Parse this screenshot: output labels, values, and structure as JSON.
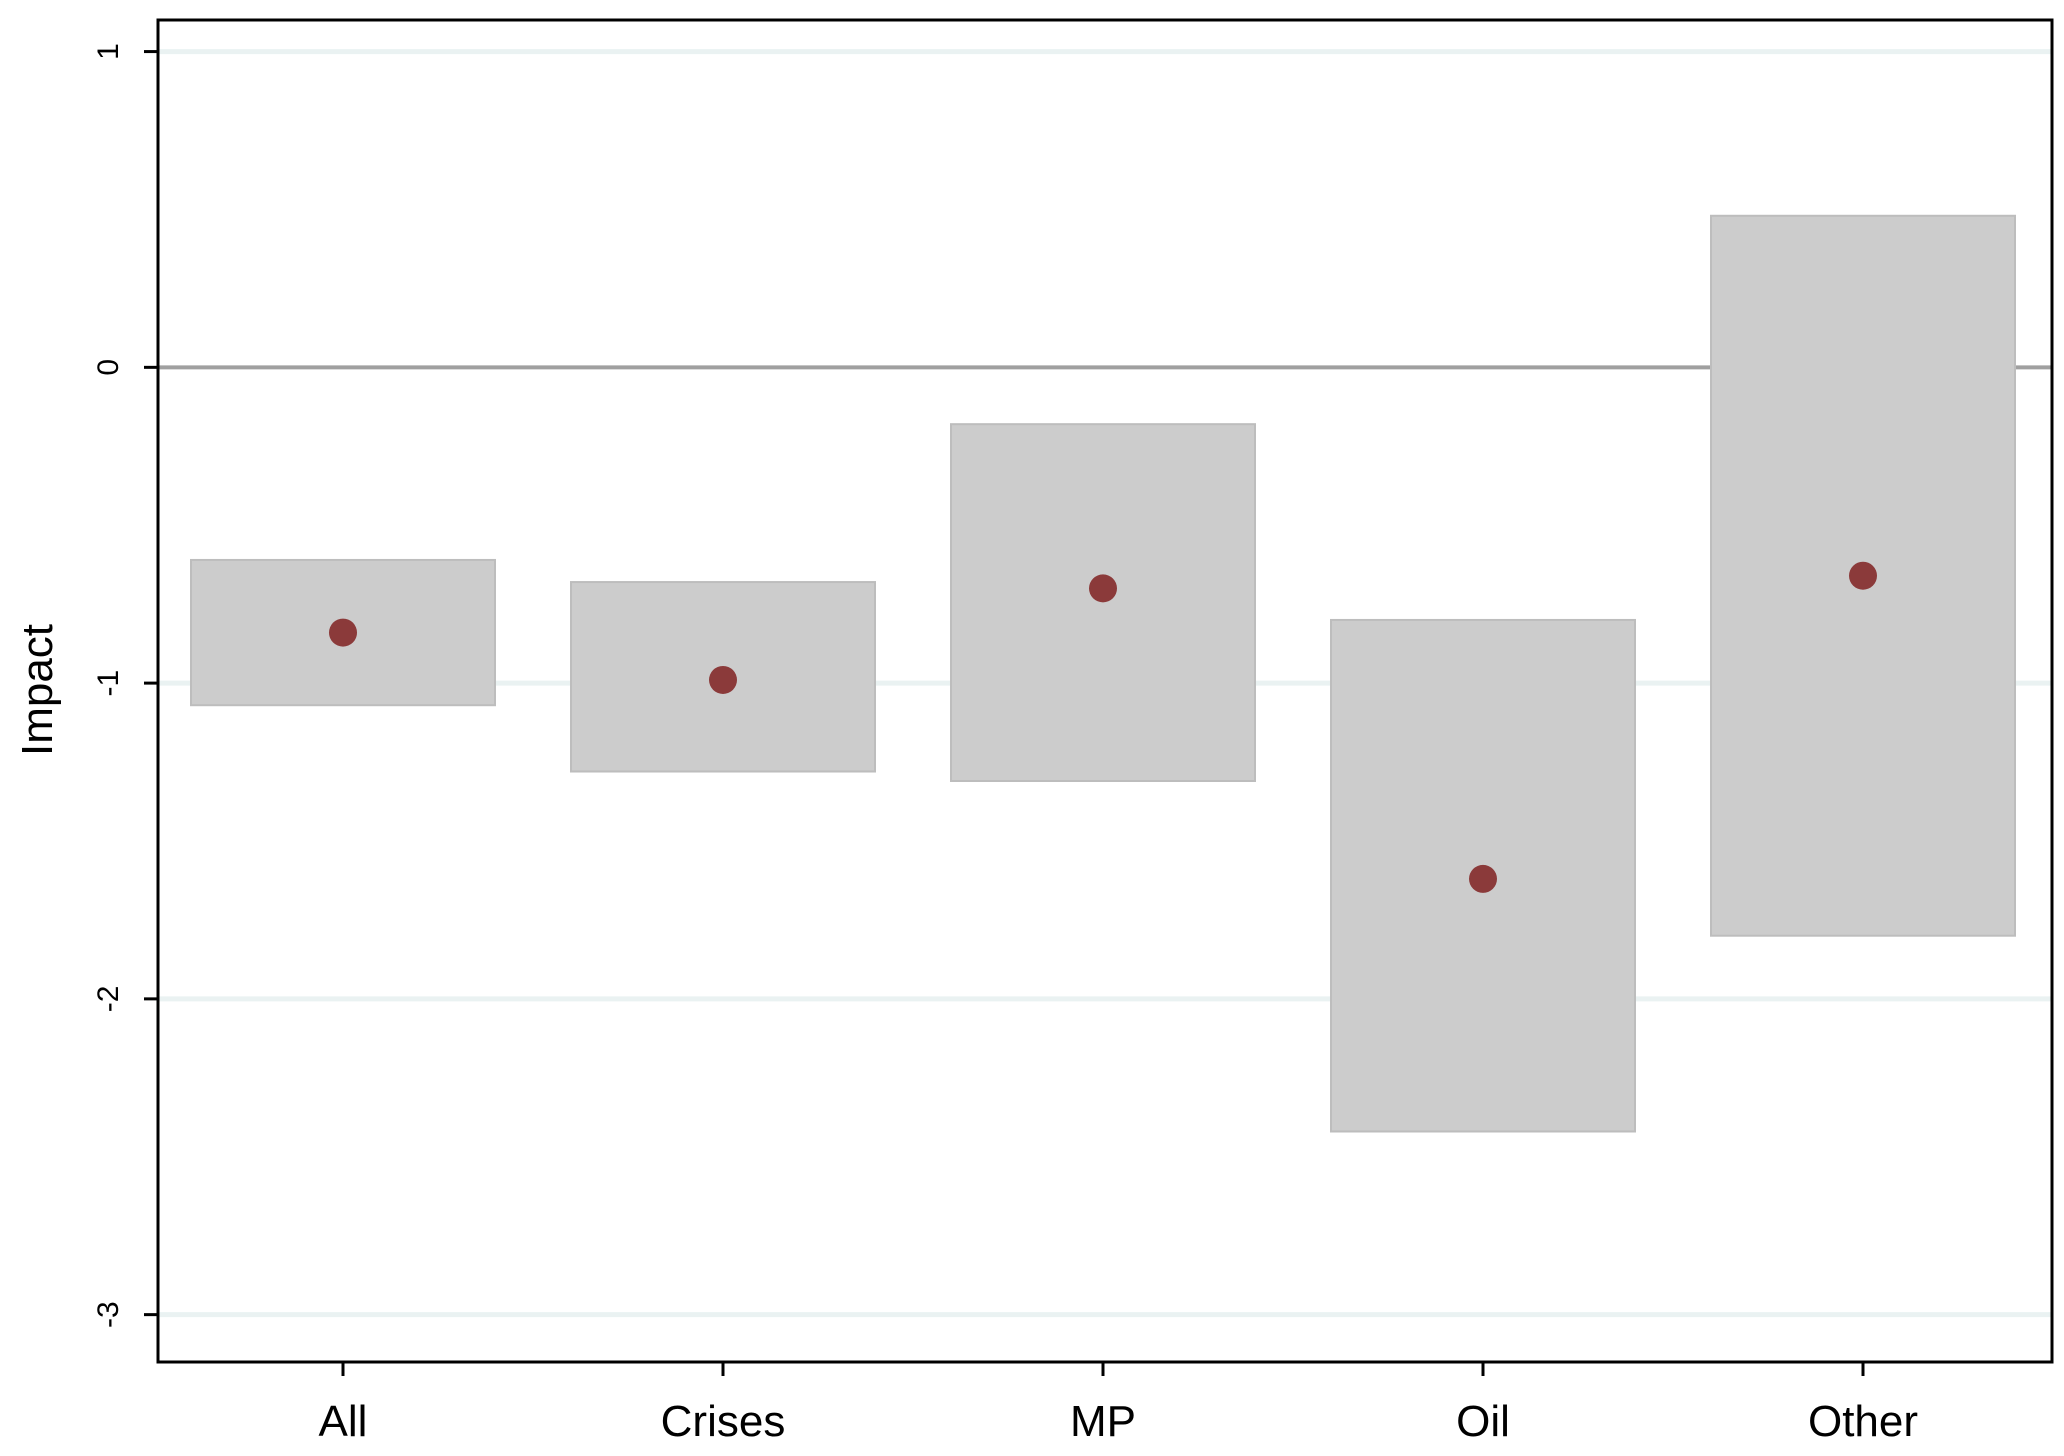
{
  "chart_data": {
    "type": "scatter",
    "title": "",
    "xlabel": "",
    "ylabel": "Impact",
    "ylim": [
      -3.15,
      1.1
    ],
    "y_ticks": [
      1,
      0,
      -1,
      -2,
      -3
    ],
    "y_tick_labels": [
      "1",
      "0",
      "-1",
      "-2",
      "-3"
    ],
    "categories": [
      "All",
      "Crises",
      "MP",
      "Oil",
      "Other"
    ],
    "series": [
      {
        "values": [
          -0.84,
          -0.99,
          -0.7,
          -1.62,
          -0.66
        ],
        "lower": [
          -1.07,
          -1.28,
          -1.31,
          -2.42,
          -1.8
        ],
        "upper": [
          -0.61,
          -0.68,
          -0.18,
          -0.8,
          0.48
        ]
      }
    ],
    "reference_line": 0,
    "grid": true,
    "legend": "none",
    "colors": {
      "point": "#8b3a3a",
      "interval_fill": "#cccccc",
      "interval_stroke": "#bdbdbd",
      "grid": "#eaf2f2",
      "zero_line": "#a0a0a0"
    }
  }
}
